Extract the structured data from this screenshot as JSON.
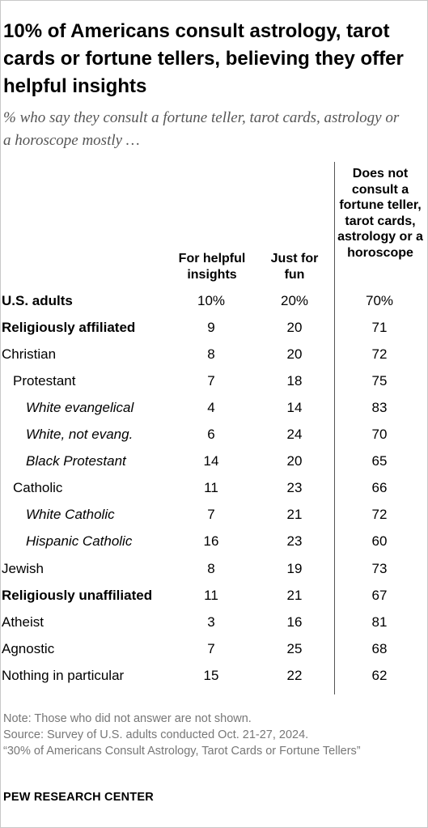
{
  "title": "10% of Americans consult astrology, tarot cards or fortune tellers, believing they offer helpful insights",
  "subtitle": "% who say they consult a fortune teller, tarot cards, astrology or a horoscope mostly …",
  "chart_data": {
    "type": "table",
    "columns": [
      "For helpful insights",
      "Just for fun",
      "Does not consult a fortune teller, tarot cards, astrology or a horoscope"
    ],
    "rows": [
      {
        "label": "U.S. adults",
        "style": "bold",
        "indent": 0,
        "values": [
          "10%",
          "20%",
          "70%"
        ]
      },
      {
        "label": "Religiously affiliated",
        "style": "bold",
        "indent": 0,
        "values": [
          "9",
          "20",
          "71"
        ]
      },
      {
        "label": "Christian",
        "style": "normal",
        "indent": 0,
        "values": [
          "8",
          "20",
          "72"
        ]
      },
      {
        "label": "Protestant",
        "style": "normal",
        "indent": 1,
        "values": [
          "7",
          "18",
          "75"
        ]
      },
      {
        "label": "White evangelical",
        "style": "italic",
        "indent": 2,
        "values": [
          "4",
          "14",
          "83"
        ]
      },
      {
        "label": "White, not evang.",
        "style": "italic",
        "indent": 2,
        "values": [
          "6",
          "24",
          "70"
        ]
      },
      {
        "label": "Black Protestant",
        "style": "italic",
        "indent": 2,
        "values": [
          "14",
          "20",
          "65"
        ]
      },
      {
        "label": "Catholic",
        "style": "normal",
        "indent": 1,
        "values": [
          "11",
          "23",
          "66"
        ]
      },
      {
        "label": "White Catholic",
        "style": "italic",
        "indent": 2,
        "values": [
          "7",
          "21",
          "72"
        ]
      },
      {
        "label": "Hispanic Catholic",
        "style": "italic",
        "indent": 2,
        "values": [
          "16",
          "23",
          "60"
        ]
      },
      {
        "label": "Jewish",
        "style": "normal",
        "indent": 0,
        "values": [
          "8",
          "19",
          "73"
        ]
      },
      {
        "label": "Religiously unaffiliated",
        "style": "bold",
        "indent": 0,
        "values": [
          "11",
          "21",
          "67"
        ]
      },
      {
        "label": "Atheist",
        "style": "normal",
        "indent": 0,
        "values": [
          "3",
          "16",
          "81"
        ]
      },
      {
        "label": "Agnostic",
        "style": "normal",
        "indent": 0,
        "values": [
          "7",
          "25",
          "68"
        ]
      },
      {
        "label": "Nothing in particular",
        "style": "normal",
        "indent": 0,
        "values": [
          "15",
          "22",
          "62"
        ]
      }
    ]
  },
  "notes": {
    "note": "Note: Those who did not answer are not shown.",
    "source": "Source: Survey of U.S. adults conducted Oct. 21-27, 2024.",
    "report": "“30% of Americans Consult Astrology, Tarot Cards or Fortune Tellers”"
  },
  "brand": "PEW RESEARCH CENTER"
}
